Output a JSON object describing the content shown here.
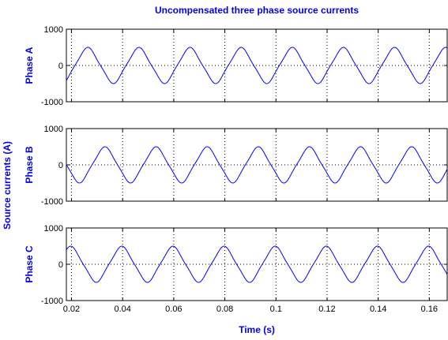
{
  "chart_data": {
    "type": "line",
    "title": "Uncompensated three phase source currents",
    "xlabel": "Time (s)",
    "ylabel": "Source currents (A)",
    "xlim": [
      0.018,
      0.167
    ],
    "xticks": [
      0.02,
      0.04,
      0.06,
      0.08,
      0.1,
      0.12,
      0.14,
      0.16
    ],
    "xtick_labels": [
      "0.02",
      "0.04",
      "0.06",
      "0.08",
      "0.1",
      "0.12",
      "0.14",
      "0.16"
    ],
    "grid": true,
    "line_color": "#0000ff",
    "label_color": "#0000ee",
    "panels": [
      {
        "ylabel": "Phase A",
        "ylim": [
          -1000,
          1000
        ],
        "yticks": [
          1000,
          0,
          -1000
        ],
        "ytick_labels": [
          "1000",
          "0",
          "-1000"
        ],
        "series": {
          "amplitude_A": 500,
          "frequency_Hz": 50,
          "peak_times_s": [
            0.0265,
            0.0465,
            0.0665,
            0.0865,
            0.1065,
            0.1265,
            0.1465,
            0.1665
          ],
          "trough_times_s": [
            0.0165,
            0.0365,
            0.0565,
            0.0765,
            0.0965,
            0.1165,
            0.1365,
            0.1565
          ]
        }
      },
      {
        "ylabel": "Phase B",
        "ylim": [
          -1000,
          1000
        ],
        "yticks": [
          1000,
          0,
          -1000
        ],
        "ytick_labels": [
          "1000",
          "0",
          "-1000"
        ],
        "series": {
          "amplitude_A": 500,
          "frequency_Hz": 50,
          "peak_times_s": [
            0.0332,
            0.0532,
            0.0732,
            0.0932,
            0.1132,
            0.1332,
            0.1532
          ],
          "trough_times_s": [
            0.0232,
            0.0432,
            0.0632,
            0.0832,
            0.1032,
            0.1232,
            0.1432,
            0.1632
          ]
        }
      },
      {
        "ylabel": "Phase C",
        "ylim": [
          -1000,
          1000
        ],
        "yticks": [
          1000,
          0,
          -1000
        ],
        "ytick_labels": [
          "1000",
          "0",
          "-1000"
        ],
        "series": {
          "amplitude_A": 500,
          "frequency_Hz": 50,
          "peak_times_s": [
            0.0198,
            0.0398,
            0.0598,
            0.0798,
            0.0998,
            0.1198,
            0.1398,
            0.1598
          ],
          "trough_times_s": [
            0.0298,
            0.0498,
            0.0698,
            0.0898,
            0.1098,
            0.1298,
            0.1498
          ]
        }
      }
    ]
  }
}
